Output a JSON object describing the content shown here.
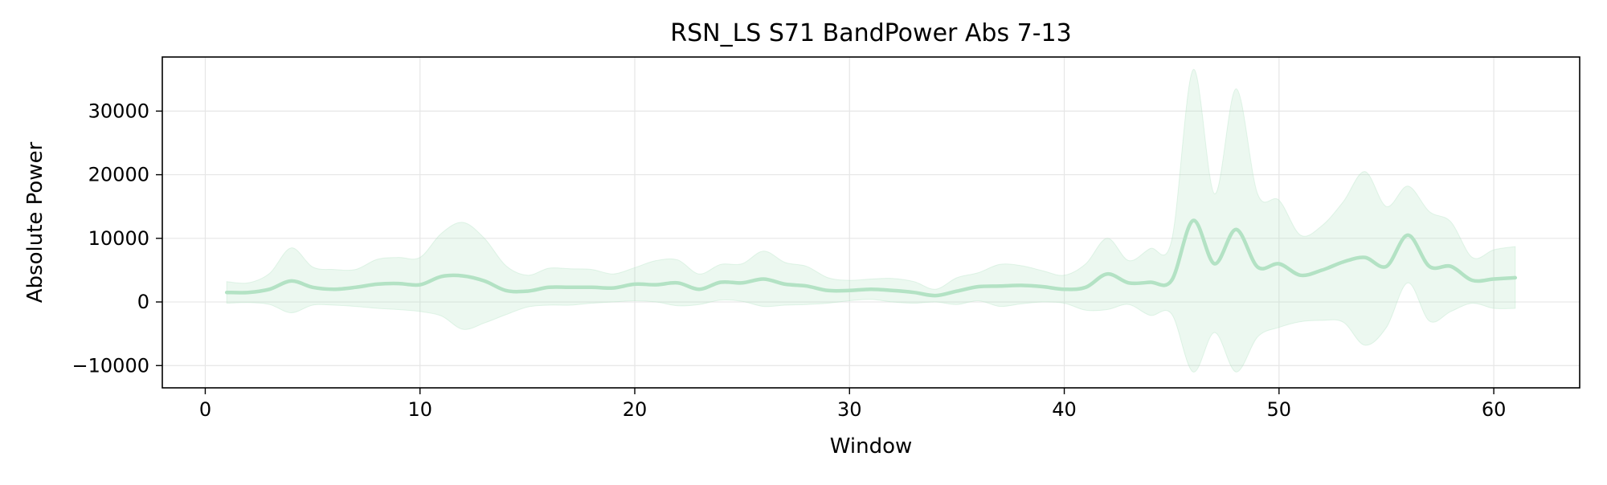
{
  "chart_data": {
    "type": "line",
    "title": "RSN_LS S71 BandPower Abs 7-13",
    "xlabel": "Window",
    "ylabel": "Absolute Power",
    "xlim": [
      -2,
      64
    ],
    "ylim": [
      -13500,
      38500
    ],
    "x_ticks": [
      0,
      10,
      20,
      30,
      40,
      50,
      60
    ],
    "x_tick_labels": [
      "0",
      "10",
      "20",
      "30",
      "40",
      "50",
      "60"
    ],
    "y_ticks": [
      -10000,
      0,
      10000,
      20000,
      30000
    ],
    "y_tick_labels": [
      "−10000",
      "0",
      "10000",
      "20000",
      "30000"
    ],
    "grid": true,
    "legend": "none",
    "colors": {
      "line": "#b3e2c4",
      "band": "#b3e2c4",
      "grid": "#e6e6e6",
      "axes": "#000000"
    },
    "series": [
      {
        "x": [
          1,
          2,
          3,
          4,
          5,
          6,
          7,
          8,
          9,
          10,
          11,
          12,
          13,
          14,
          15,
          16,
          17,
          18,
          19,
          20,
          21,
          22,
          23,
          24,
          25,
          26,
          27,
          28,
          29,
          30,
          31,
          32,
          33,
          34,
          35,
          36,
          37,
          38,
          39,
          40,
          41,
          42,
          43,
          44,
          45,
          46,
          47,
          48,
          49,
          50,
          51,
          52,
          53,
          54,
          55,
          56,
          57,
          58,
          59,
          60,
          61
        ],
        "mean": [
          1500,
          1500,
          2000,
          3300,
          2300,
          2000,
          2300,
          2800,
          2900,
          2700,
          4000,
          4100,
          3300,
          1800,
          1700,
          2300,
          2300,
          2300,
          2200,
          2800,
          2700,
          3000,
          2000,
          3100,
          3000,
          3600,
          2800,
          2500,
          1800,
          1800,
          2000,
          1800,
          1500,
          1000,
          1700,
          2400,
          2500,
          2600,
          2400,
          2000,
          2300,
          4400,
          3000,
          3100,
          3400,
          12800,
          6000,
          11400,
          5500,
          6000,
          4200,
          5000,
          6300,
          7000,
          5600,
          10500,
          5600,
          5600,
          3400,
          3600,
          3800
        ],
        "upper": [
          3200,
          3000,
          4500,
          8500,
          5500,
          5100,
          5100,
          6700,
          7000,
          7000,
          10800,
          12500,
          10000,
          5700,
          4200,
          5300,
          5200,
          5100,
          4400,
          5400,
          6500,
          6600,
          4400,
          5900,
          6000,
          8000,
          6200,
          5600,
          3800,
          3400,
          3600,
          3700,
          3200,
          2000,
          3800,
          4600,
          5900,
          5700,
          4900,
          4200,
          6000,
          10000,
          6500,
          8400,
          9700,
          36500,
          17000,
          33500,
          17000,
          16000,
          10500,
          12000,
          15800,
          20500,
          15000,
          18200,
          14200,
          12600,
          7000,
          8200,
          8700
        ],
        "lower": [
          -200,
          -100,
          -400,
          -1700,
          -500,
          -500,
          -700,
          -1000,
          -1200,
          -1500,
          -2200,
          -4300,
          -3300,
          -2000,
          -800,
          -500,
          -500,
          -200,
          0,
          200,
          0,
          -600,
          -400,
          300,
          100,
          -700,
          -500,
          -400,
          -200,
          200,
          400,
          0,
          -200,
          0,
          -400,
          200,
          -700,
          -300,
          0,
          -200,
          -1300,
          -1200,
          -400,
          -2100,
          -1900,
          -11000,
          -4800,
          -11000,
          -5500,
          -4000,
          -3100,
          -2900,
          -3200,
          -6800,
          -4000,
          3000,
          -3000,
          -1500,
          -200,
          -1000,
          -1000
        ]
      }
    ]
  }
}
